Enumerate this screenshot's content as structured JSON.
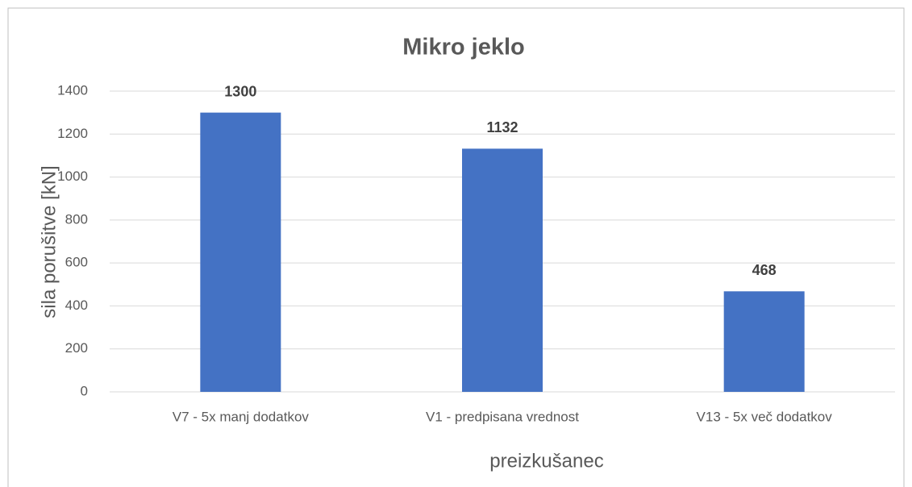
{
  "chart_data": {
    "type": "bar",
    "title": "Mikro jeklo",
    "categories": [
      "V7 - 5x manj dodatkov",
      "V1 - predpisana vrednost",
      "V13 - 5x več dodatkov"
    ],
    "values": [
      1300,
      1132,
      468
    ],
    "color": "#4472c4",
    "xlabel": "preizkušanec",
    "ylabel": "sila porušitve [kN]",
    "ylim": [
      0,
      1400
    ],
    "yticks": [
      0,
      200,
      400,
      600,
      800,
      1000,
      1200,
      1400
    ],
    "grid": true
  }
}
